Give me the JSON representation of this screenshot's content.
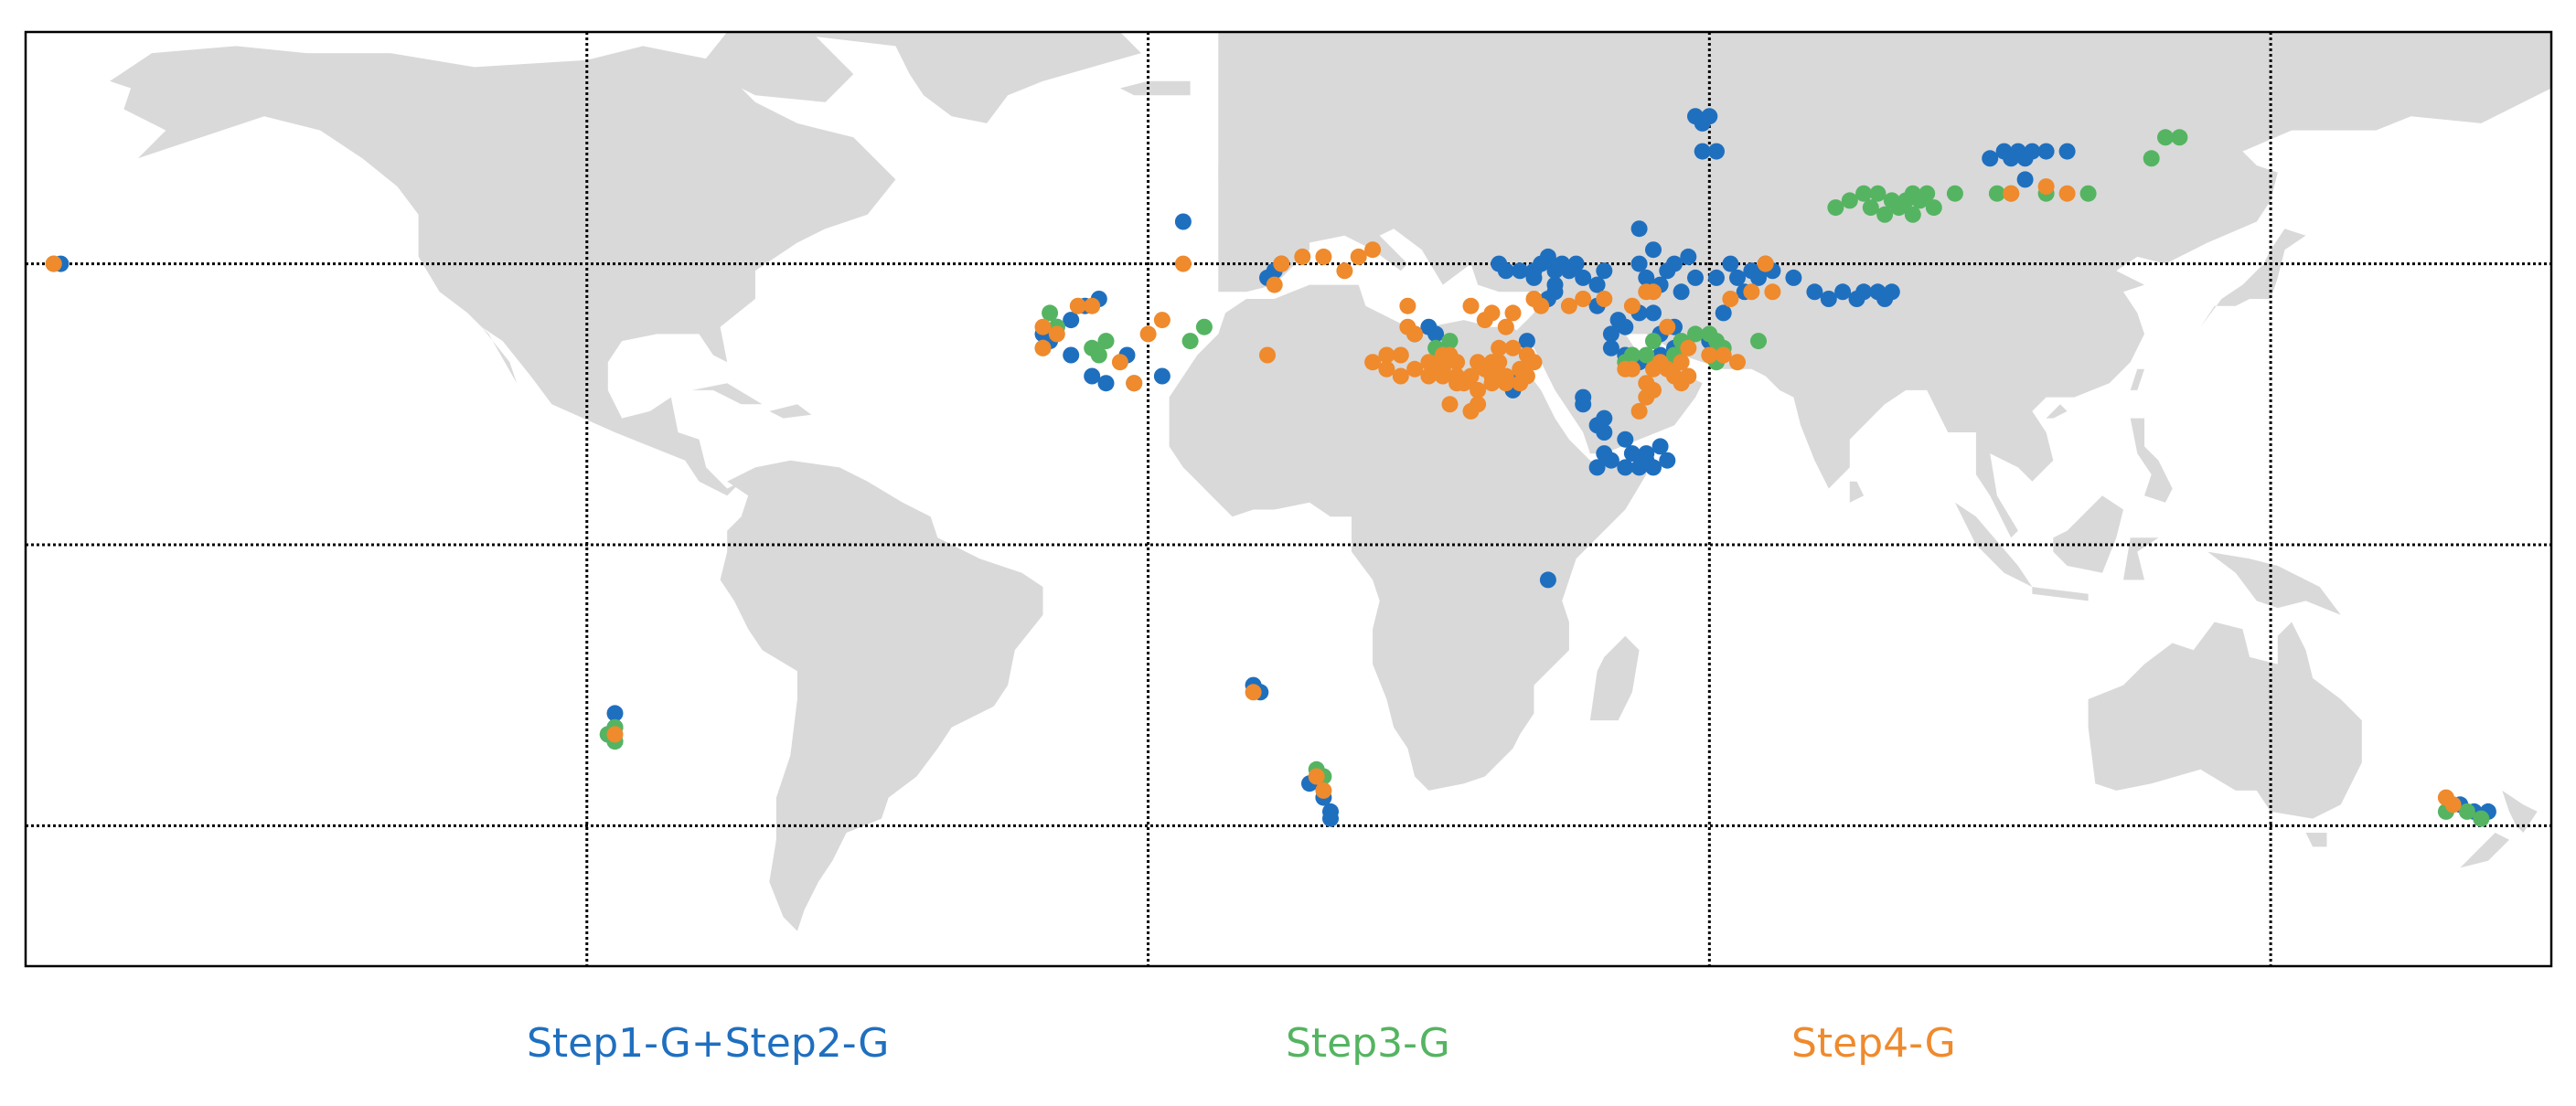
{
  "chart_data": {
    "type": "scatter",
    "projection": "equirectangular",
    "extent": {
      "lon": [
        -180,
        180
      ],
      "lat": [
        -60,
        73
      ]
    },
    "grid": {
      "on": true,
      "style": "dotted",
      "lons": [
        -100,
        -20,
        60,
        140
      ],
      "lats": [
        -40,
        0,
        40
      ]
    },
    "legend_placement": "bottom-center",
    "colors": {
      "land": "#d9d9d9",
      "ocean": "#ffffff",
      "grid": "#000000"
    },
    "series": [
      {
        "name": "Step1-G+Step2-G",
        "color": "#1f6fbf",
        "points": [
          [
            -175,
            40
          ],
          [
            -31,
            32
          ],
          [
            -33,
            31
          ],
          [
            -35,
            30
          ],
          [
            -34,
            29
          ],
          [
            -29,
            34
          ],
          [
            -27,
            35
          ],
          [
            -31,
            27
          ],
          [
            -28,
            24
          ],
          [
            -26,
            23
          ],
          [
            -22,
            23
          ],
          [
            -18,
            24
          ],
          [
            -23,
            27
          ],
          [
            -15,
            46
          ],
          [
            -2,
            39
          ],
          [
            -1,
            40
          ],
          [
            -3,
            38
          ],
          [
            30,
            40
          ],
          [
            31,
            39
          ],
          [
            33,
            39
          ],
          [
            35,
            38
          ],
          [
            38,
            37
          ],
          [
            38,
            36
          ],
          [
            37,
            35
          ],
          [
            38,
            39
          ],
          [
            37,
            41
          ],
          [
            36,
            40
          ],
          [
            35,
            39
          ],
          [
            39,
            40
          ],
          [
            41,
            40
          ],
          [
            40,
            39
          ],
          [
            44,
            37
          ],
          [
            42,
            38
          ],
          [
            45,
            39
          ],
          [
            34,
            29
          ],
          [
            32,
            22
          ],
          [
            33,
            24
          ],
          [
            44,
            34
          ],
          [
            50,
            33
          ],
          [
            52,
            33
          ],
          [
            56,
            36
          ],
          [
            58,
            38
          ],
          [
            54,
            39
          ],
          [
            57,
            41
          ],
          [
            61,
            38
          ],
          [
            63,
            40
          ],
          [
            66,
            39
          ],
          [
            68,
            40
          ],
          [
            67,
            38
          ],
          [
            65,
            36
          ],
          [
            69,
            39
          ],
          [
            72,
            38
          ],
          [
            58,
            61
          ],
          [
            59,
            60
          ],
          [
            60,
            61
          ],
          [
            59,
            56
          ],
          [
            61,
            56
          ],
          [
            47,
            32
          ],
          [
            46,
            30
          ],
          [
            48,
            31
          ],
          [
            46,
            28
          ],
          [
            48,
            27
          ],
          [
            50,
            26
          ],
          [
            53,
            27
          ],
          [
            55,
            28
          ],
          [
            53,
            30
          ],
          [
            55,
            31
          ],
          [
            60,
            29
          ],
          [
            62,
            33
          ],
          [
            75,
            36
          ],
          [
            77,
            35
          ],
          [
            79,
            36
          ],
          [
            81,
            35
          ],
          [
            82,
            36
          ],
          [
            84,
            36
          ],
          [
            86,
            36
          ],
          [
            85,
            35
          ],
          [
            42,
            21
          ],
          [
            42,
            20
          ],
          [
            44,
            17
          ],
          [
            45,
            18
          ],
          [
            45,
            16
          ],
          [
            48,
            15
          ],
          [
            45,
            13
          ],
          [
            49,
            13
          ],
          [
            51,
            13
          ],
          [
            53,
            14
          ],
          [
            54,
            12
          ],
          [
            52,
            11
          ],
          [
            48,
            11
          ],
          [
            44,
            11
          ],
          [
            46,
            12
          ],
          [
            50,
            11
          ],
          [
            51,
            12
          ],
          [
            37,
            -5
          ],
          [
            -96,
            -24
          ],
          [
            -96,
            -26
          ],
          [
            -97,
            -27
          ],
          [
            -96,
            -28
          ],
          [
            -5,
            -20
          ],
          [
            -4,
            -21
          ],
          [
            3,
            -34
          ],
          [
            5,
            -36
          ],
          [
            6,
            -38
          ],
          [
            6,
            -39
          ],
          [
            167,
            -37
          ],
          [
            169,
            -38
          ],
          [
            170,
            -39
          ],
          [
            171,
            -38
          ],
          [
            20,
            31
          ],
          [
            21,
            30
          ],
          [
            18,
            30
          ],
          [
            55,
            40
          ],
          [
            53,
            37
          ],
          [
            51,
            38
          ],
          [
            100,
            55
          ],
          [
            102,
            56
          ],
          [
            103,
            55
          ],
          [
            104,
            56
          ],
          [
            105,
            55
          ],
          [
            106,
            56
          ],
          [
            108,
            56
          ],
          [
            111,
            56
          ],
          [
            105,
            52
          ],
          [
            50,
            45
          ],
          [
            52,
            42
          ],
          [
            64,
            38
          ],
          [
            50,
            40
          ]
        ]
      },
      {
        "name": "Step3-G",
        "color": "#55b461",
        "points": [
          [
            -176,
            40
          ],
          [
            -34,
            33
          ],
          [
            -33,
            31
          ],
          [
            -35,
            28
          ],
          [
            -26,
            29
          ],
          [
            -27,
            27
          ],
          [
            -28,
            28
          ],
          [
            -14,
            29
          ],
          [
            -12,
            31
          ],
          [
            21,
            28
          ],
          [
            22,
            27
          ],
          [
            23,
            29
          ],
          [
            60,
            30
          ],
          [
            61,
            29
          ],
          [
            52,
            29
          ],
          [
            56,
            29
          ],
          [
            58,
            30
          ],
          [
            62,
            28
          ],
          [
            67,
            29
          ],
          [
            48,
            26
          ],
          [
            49,
            27
          ],
          [
            51,
            27
          ],
          [
            55,
            27
          ],
          [
            61,
            26
          ],
          [
            78,
            48
          ],
          [
            80,
            49
          ],
          [
            82,
            50
          ],
          [
            84,
            50
          ],
          [
            86,
            49
          ],
          [
            88,
            49
          ],
          [
            90,
            49
          ],
          [
            83,
            48
          ],
          [
            85,
            47
          ],
          [
            87,
            48
          ],
          [
            89,
            47
          ],
          [
            92,
            48
          ],
          [
            95,
            50
          ],
          [
            89,
            50
          ],
          [
            91,
            50
          ],
          [
            101,
            50
          ],
          [
            103,
            50
          ],
          [
            108,
            50
          ],
          [
            114,
            50
          ],
          [
            123,
            55
          ],
          [
            125,
            58
          ],
          [
            127,
            58
          ],
          [
            -96,
            -26
          ],
          [
            -97,
            -27
          ],
          [
            -96,
            -28
          ],
          [
            4,
            -32
          ],
          [
            5,
            -33
          ],
          [
            165,
            -38
          ],
          [
            168,
            -38
          ],
          [
            170,
            -39
          ]
        ]
      },
      {
        "name": "Step4-G",
        "color": "#ef8a2d",
        "points": [
          [
            -176,
            40
          ],
          [
            -35,
            31
          ],
          [
            -35,
            28
          ],
          [
            -33,
            30
          ],
          [
            -30,
            34
          ],
          [
            -28,
            34
          ],
          [
            -18,
            32
          ],
          [
            -15,
            40
          ],
          [
            -22,
            23
          ],
          [
            -24,
            26
          ],
          [
            -20,
            30
          ],
          [
            -3,
            27
          ],
          [
            2,
            41
          ],
          [
            5,
            41
          ],
          [
            8,
            39
          ],
          [
            10,
            41
          ],
          [
            12,
            42
          ],
          [
            -1,
            40
          ],
          [
            -2,
            37
          ],
          [
            17,
            34
          ],
          [
            17,
            31
          ],
          [
            18,
            30
          ],
          [
            14,
            27
          ],
          [
            12,
            26
          ],
          [
            14,
            25
          ],
          [
            16,
            24
          ],
          [
            18,
            25
          ],
          [
            16,
            27
          ],
          [
            20,
            26
          ],
          [
            23,
            27
          ],
          [
            24,
            26
          ],
          [
            27,
            26
          ],
          [
            28,
            25
          ],
          [
            30,
            26
          ],
          [
            30,
            28
          ],
          [
            32,
            28
          ],
          [
            34,
            27
          ],
          [
            35,
            26
          ],
          [
            33,
            25
          ],
          [
            31,
            24
          ],
          [
            33,
            23
          ],
          [
            34,
            24
          ],
          [
            29,
            24
          ],
          [
            25,
            23
          ],
          [
            24,
            24
          ],
          [
            26,
            24
          ],
          [
            22,
            25
          ],
          [
            21,
            25
          ],
          [
            20,
            24
          ],
          [
            22,
            24
          ],
          [
            22,
            27
          ],
          [
            24,
            23
          ],
          [
            27,
            22
          ],
          [
            27,
            20
          ],
          [
            26,
            19
          ],
          [
            23,
            20
          ],
          [
            29,
            23
          ],
          [
            30,
            24
          ],
          [
            31,
            23
          ],
          [
            29,
            26
          ],
          [
            28,
            32
          ],
          [
            29,
            33
          ],
          [
            26,
            34
          ],
          [
            31,
            31
          ],
          [
            32,
            33
          ],
          [
            35,
            35
          ],
          [
            36,
            34
          ],
          [
            40,
            34
          ],
          [
            42,
            35
          ],
          [
            45,
            35
          ],
          [
            49,
            34
          ],
          [
            51,
            36
          ],
          [
            52,
            36
          ],
          [
            54,
            31
          ],
          [
            55,
            24
          ],
          [
            56,
            23
          ],
          [
            57,
            24
          ],
          [
            56,
            26
          ],
          [
            57,
            28
          ],
          [
            60,
            27
          ],
          [
            62,
            27
          ],
          [
            64,
            26
          ],
          [
            68,
            40
          ],
          [
            66,
            36
          ],
          [
            69,
            36
          ],
          [
            63,
            35
          ],
          [
            54,
            25
          ],
          [
            52,
            25
          ],
          [
            53,
            26
          ],
          [
            49,
            25
          ],
          [
            48,
            25
          ],
          [
            51,
            23
          ],
          [
            51,
            21
          ],
          [
            50,
            19
          ],
          [
            52,
            22
          ],
          [
            103,
            50
          ],
          [
            108,
            51
          ],
          [
            111,
            50
          ],
          [
            -96,
            -27
          ],
          [
            -5,
            -21
          ],
          [
            4,
            -33
          ],
          [
            5,
            -35
          ],
          [
            165,
            -36
          ],
          [
            166,
            -37
          ]
        ]
      }
    ]
  },
  "legend": {
    "items": [
      {
        "label": "Step1-G+Step2-G",
        "color": "#1f6fbf"
      },
      {
        "label": "Step3-G",
        "color": "#55b461"
      },
      {
        "label": "Step4-G",
        "color": "#ef8a2d"
      }
    ]
  }
}
